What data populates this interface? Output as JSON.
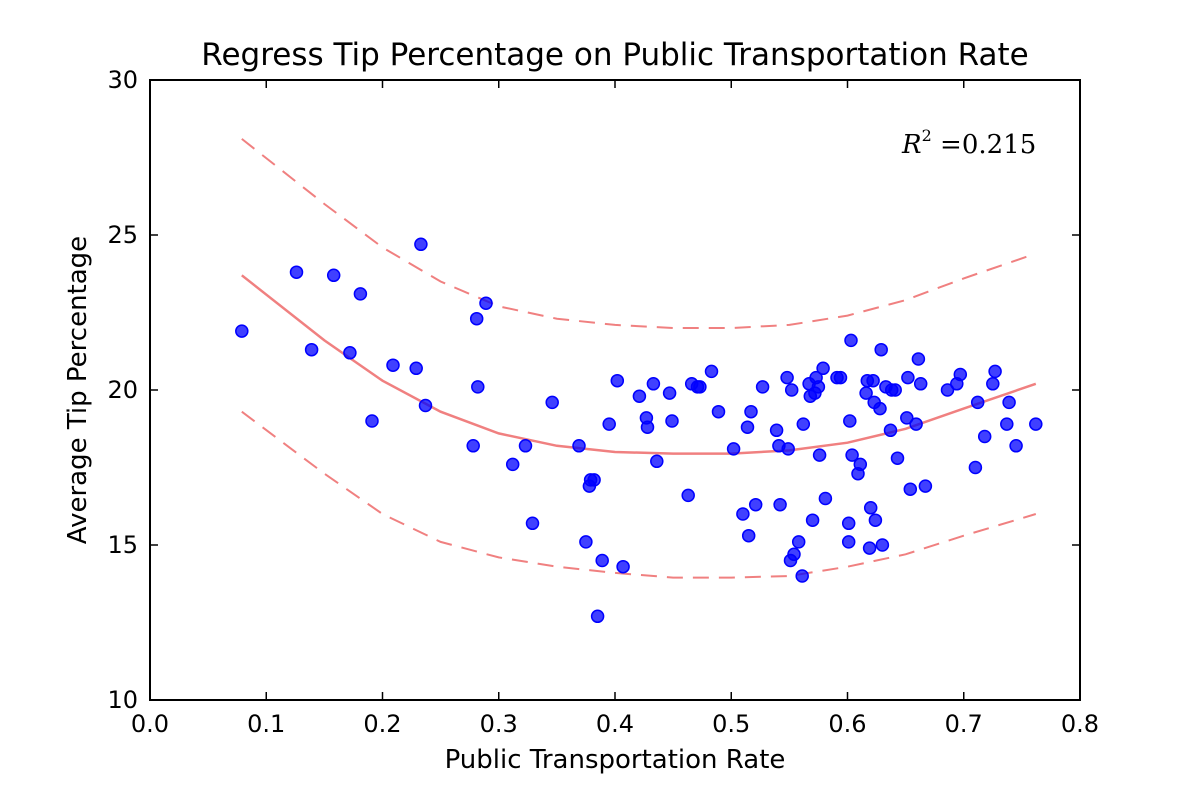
{
  "chart_data": {
    "type": "scatter",
    "title": "Regress Tip Percentage on Public Transportation Rate",
    "xlabel": "Public Transportation Rate",
    "ylabel": "Average Tip Percentage",
    "xlim": [
      0.0,
      0.8
    ],
    "ylim": [
      10,
      30
    ],
    "x_ticks": [
      "0.0",
      "0.1",
      "0.2",
      "0.3",
      "0.4",
      "0.5",
      "0.6",
      "0.7",
      "0.8"
    ],
    "y_ticks": [
      "10",
      "15",
      "20",
      "25",
      "30"
    ],
    "grid": false,
    "annotation": {
      "prefix": "R",
      "exponent": "2",
      "suffix": " =0.215"
    },
    "colors": {
      "points": "#0000ff",
      "fit": "#f08080",
      "band": "#f08080"
    },
    "points": [
      [
        0.079,
        21.9
      ],
      [
        0.126,
        23.8
      ],
      [
        0.139,
        21.3
      ],
      [
        0.158,
        23.7
      ],
      [
        0.172,
        21.2
      ],
      [
        0.181,
        23.1
      ],
      [
        0.191,
        19.0
      ],
      [
        0.209,
        20.8
      ],
      [
        0.229,
        20.7
      ],
      [
        0.233,
        24.7
      ],
      [
        0.237,
        19.5
      ],
      [
        0.278,
        18.2
      ],
      [
        0.281,
        22.3
      ],
      [
        0.282,
        20.1
      ],
      [
        0.289,
        22.8
      ],
      [
        0.312,
        17.6
      ],
      [
        0.323,
        18.2
      ],
      [
        0.329,
        15.7
      ],
      [
        0.346,
        19.6
      ],
      [
        0.369,
        18.2
      ],
      [
        0.375,
        15.1
      ],
      [
        0.378,
        16.9
      ],
      [
        0.379,
        17.1
      ],
      [
        0.382,
        17.1
      ],
      [
        0.385,
        12.7
      ],
      [
        0.389,
        14.5
      ],
      [
        0.395,
        18.9
      ],
      [
        0.402,
        20.3
      ],
      [
        0.407,
        14.3
      ],
      [
        0.421,
        19.8
      ],
      [
        0.427,
        19.1
      ],
      [
        0.428,
        18.8
      ],
      [
        0.433,
        20.2
      ],
      [
        0.436,
        17.7
      ],
      [
        0.447,
        19.9
      ],
      [
        0.449,
        19.0
      ],
      [
        0.463,
        16.6
      ],
      [
        0.466,
        20.2
      ],
      [
        0.471,
        20.1
      ],
      [
        0.473,
        20.1
      ],
      [
        0.483,
        20.6
      ],
      [
        0.489,
        19.3
      ],
      [
        0.502,
        18.1
      ],
      [
        0.51,
        16.0
      ],
      [
        0.514,
        18.8
      ],
      [
        0.515,
        15.3
      ],
      [
        0.517,
        19.3
      ],
      [
        0.521,
        16.3
      ],
      [
        0.527,
        20.1
      ],
      [
        0.539,
        18.7
      ],
      [
        0.541,
        18.2
      ],
      [
        0.542,
        16.3
      ],
      [
        0.548,
        20.4
      ],
      [
        0.549,
        18.1
      ],
      [
        0.551,
        14.5
      ],
      [
        0.552,
        20.0
      ],
      [
        0.554,
        14.7
      ],
      [
        0.558,
        15.1
      ],
      [
        0.561,
        14.0
      ],
      [
        0.562,
        18.9
      ],
      [
        0.567,
        20.2
      ],
      [
        0.568,
        19.8
      ],
      [
        0.57,
        15.8
      ],
      [
        0.572,
        19.9
      ],
      [
        0.573,
        20.4
      ],
      [
        0.575,
        20.1
      ],
      [
        0.576,
        17.9
      ],
      [
        0.579,
        20.7
      ],
      [
        0.581,
        16.5
      ],
      [
        0.591,
        20.4
      ],
      [
        0.594,
        20.4
      ],
      [
        0.601,
        15.7
      ],
      [
        0.601,
        15.1
      ],
      [
        0.602,
        19.0
      ],
      [
        0.603,
        21.6
      ],
      [
        0.604,
        17.9
      ],
      [
        0.609,
        17.3
      ],
      [
        0.611,
        17.6
      ],
      [
        0.616,
        19.9
      ],
      [
        0.617,
        20.3
      ],
      [
        0.619,
        14.9
      ],
      [
        0.62,
        16.2
      ],
      [
        0.622,
        20.3
      ],
      [
        0.623,
        19.6
      ],
      [
        0.624,
        15.8
      ],
      [
        0.628,
        19.4
      ],
      [
        0.629,
        21.3
      ],
      [
        0.63,
        15.0
      ],
      [
        0.633,
        20.1
      ],
      [
        0.637,
        18.7
      ],
      [
        0.638,
        20.0
      ],
      [
        0.641,
        20.0
      ],
      [
        0.643,
        17.8
      ],
      [
        0.651,
        19.1
      ],
      [
        0.652,
        20.4
      ],
      [
        0.654,
        16.8
      ],
      [
        0.659,
        18.9
      ],
      [
        0.661,
        21.0
      ],
      [
        0.663,
        20.2
      ],
      [
        0.667,
        16.9
      ],
      [
        0.686,
        20.0
      ],
      [
        0.694,
        20.2
      ],
      [
        0.697,
        20.5
      ],
      [
        0.71,
        17.5
      ],
      [
        0.712,
        19.6
      ],
      [
        0.718,
        18.5
      ],
      [
        0.725,
        20.2
      ],
      [
        0.727,
        20.6
      ],
      [
        0.737,
        18.9
      ],
      [
        0.739,
        19.6
      ],
      [
        0.745,
        18.2
      ],
      [
        0.762,
        18.9
      ]
    ],
    "fit_line": [
      [
        0.079,
        23.7
      ],
      [
        0.15,
        21.6
      ],
      [
        0.2,
        20.3
      ],
      [
        0.25,
        19.3
      ],
      [
        0.3,
        18.6
      ],
      [
        0.35,
        18.2
      ],
      [
        0.4,
        18.0
      ],
      [
        0.45,
        17.95
      ],
      [
        0.5,
        17.95
      ],
      [
        0.55,
        18.05
      ],
      [
        0.6,
        18.3
      ],
      [
        0.65,
        18.75
      ],
      [
        0.7,
        19.4
      ],
      [
        0.762,
        20.2
      ]
    ],
    "upper_band": [
      [
        0.079,
        28.1
      ],
      [
        0.15,
        26.0
      ],
      [
        0.2,
        24.6
      ],
      [
        0.25,
        23.5
      ],
      [
        0.3,
        22.7
      ],
      [
        0.35,
        22.3
      ],
      [
        0.4,
        22.1
      ],
      [
        0.45,
        22.0
      ],
      [
        0.5,
        22.0
      ],
      [
        0.55,
        22.1
      ],
      [
        0.6,
        22.4
      ],
      [
        0.65,
        22.9
      ],
      [
        0.7,
        23.6
      ],
      [
        0.762,
        24.4
      ]
    ],
    "lower_band": [
      [
        0.079,
        19.3
      ],
      [
        0.15,
        17.3
      ],
      [
        0.2,
        16.0
      ],
      [
        0.25,
        15.1
      ],
      [
        0.3,
        14.6
      ],
      [
        0.35,
        14.3
      ],
      [
        0.4,
        14.1
      ],
      [
        0.45,
        13.95
      ],
      [
        0.5,
        13.95
      ],
      [
        0.55,
        14.0
      ],
      [
        0.6,
        14.3
      ],
      [
        0.65,
        14.7
      ],
      [
        0.7,
        15.3
      ],
      [
        0.762,
        16.0
      ]
    ]
  }
}
